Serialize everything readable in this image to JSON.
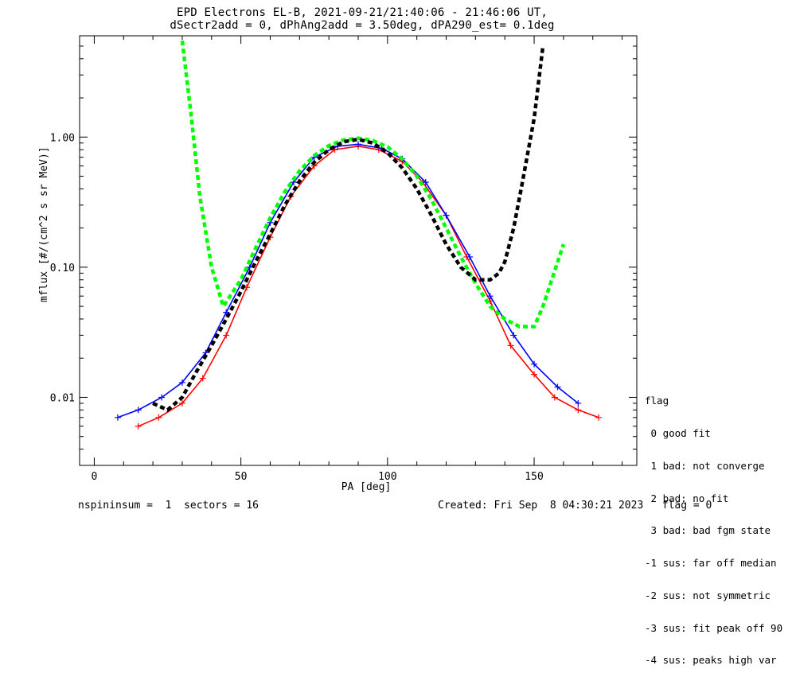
{
  "title_line1": "EPD Electrons EL-B, 2021-09-21/21:40:06 - 21:46:06 UT,",
  "title_line2": "dSectr2add = 0, dPhAng2add = 3.50deg, dPA290_est=   0.1deg",
  "footer_left": "nspininsum =  1  sectors = 16",
  "footer_right": "Created: Fri Sep  8 04:30:21 2023   flag = 0",
  "legend": {
    "title": "flag",
    "items": [
      " 0 good fit",
      " 1 bad: not converge",
      " 2 bad: no fit",
      " 3 bad: bad fgm state",
      "-1 sus: far off median",
      "-2 sus: not symmetric",
      "-3 sus: fit peak off 90",
      "-4 sus: peaks high var"
    ]
  },
  "colors": {
    "series_a": "#ff0000",
    "series_b": "#0000ff",
    "fit_green": "#00ff00",
    "fit_black": "#000000"
  },
  "chart_data": {
    "type": "line",
    "xlabel": "PA [deg]",
    "ylabel": "mflux [#/(cm^2 s sr MeV)]",
    "xlim": [
      -5,
      185
    ],
    "ylim": [
      0.003,
      6
    ],
    "yscale": "log",
    "x_ticks": [
      0,
      50,
      100,
      150
    ],
    "x_tick_labels": [
      "0",
      "50",
      "100",
      "150"
    ],
    "y_ticks": [
      0.01,
      0.1,
      1.0
    ],
    "y_tick_labels": [
      "0.01",
      "0.10",
      "1.00"
    ],
    "series": [
      {
        "color": "red",
        "note": "",
        "x": [
          15,
          22,
          30,
          37,
          45,
          52,
          60,
          67,
          75,
          82,
          90,
          97,
          105,
          112,
          120,
          127,
          135,
          142,
          150,
          157,
          165,
          172
        ],
        "y": [
          0.006,
          0.007,
          0.009,
          0.014,
          0.03,
          0.07,
          0.17,
          0.35,
          0.6,
          0.8,
          0.85,
          0.8,
          0.65,
          0.45,
          0.25,
          0.12,
          0.055,
          0.025,
          0.015,
          0.01,
          0.008,
          0.007
        ]
      },
      {
        "color": "blue",
        "note": "",
        "x": [
          8,
          15,
          23,
          30,
          38,
          45,
          53,
          60,
          68,
          75,
          83,
          90,
          98,
          105,
          113,
          120,
          128,
          135,
          143,
          150,
          158,
          165
        ],
        "y": [
          0.007,
          0.008,
          0.01,
          0.013,
          0.022,
          0.045,
          0.1,
          0.22,
          0.45,
          0.7,
          0.85,
          0.88,
          0.82,
          0.68,
          0.45,
          0.25,
          0.12,
          0.06,
          0.03,
          0.018,
          0.012,
          0.009
        ]
      },
      {
        "color": "green",
        "note": "fit",
        "x": [
          30,
          33,
          36,
          40,
          44,
          50,
          55,
          60,
          65,
          70,
          75,
          80,
          85,
          90,
          95,
          100,
          105,
          110,
          115,
          120,
          125,
          130,
          135,
          140,
          145,
          150,
          153,
          156,
          160
        ],
        "y": [
          5.5,
          1.5,
          0.35,
          0.1,
          0.05,
          0.08,
          0.14,
          0.24,
          0.38,
          0.55,
          0.72,
          0.86,
          0.95,
          0.98,
          0.94,
          0.84,
          0.68,
          0.5,
          0.33,
          0.2,
          0.12,
          0.075,
          0.05,
          0.04,
          0.035,
          0.035,
          0.05,
          0.08,
          0.15
        ]
      },
      {
        "color": "black",
        "note": "fit",
        "x": [
          20,
          25,
          30,
          35,
          40,
          45,
          50,
          55,
          60,
          65,
          70,
          75,
          80,
          85,
          90,
          95,
          100,
          105,
          110,
          115,
          120,
          125,
          130,
          135,
          138,
          140,
          143,
          146,
          150,
          153
        ],
        "y": [
          0.009,
          0.008,
          0.01,
          0.016,
          0.025,
          0.04,
          0.065,
          0.11,
          0.18,
          0.3,
          0.46,
          0.64,
          0.8,
          0.92,
          0.96,
          0.9,
          0.76,
          0.58,
          0.4,
          0.25,
          0.15,
          0.1,
          0.08,
          0.08,
          0.09,
          0.11,
          0.2,
          0.45,
          1.4,
          5.0
        ]
      }
    ]
  }
}
